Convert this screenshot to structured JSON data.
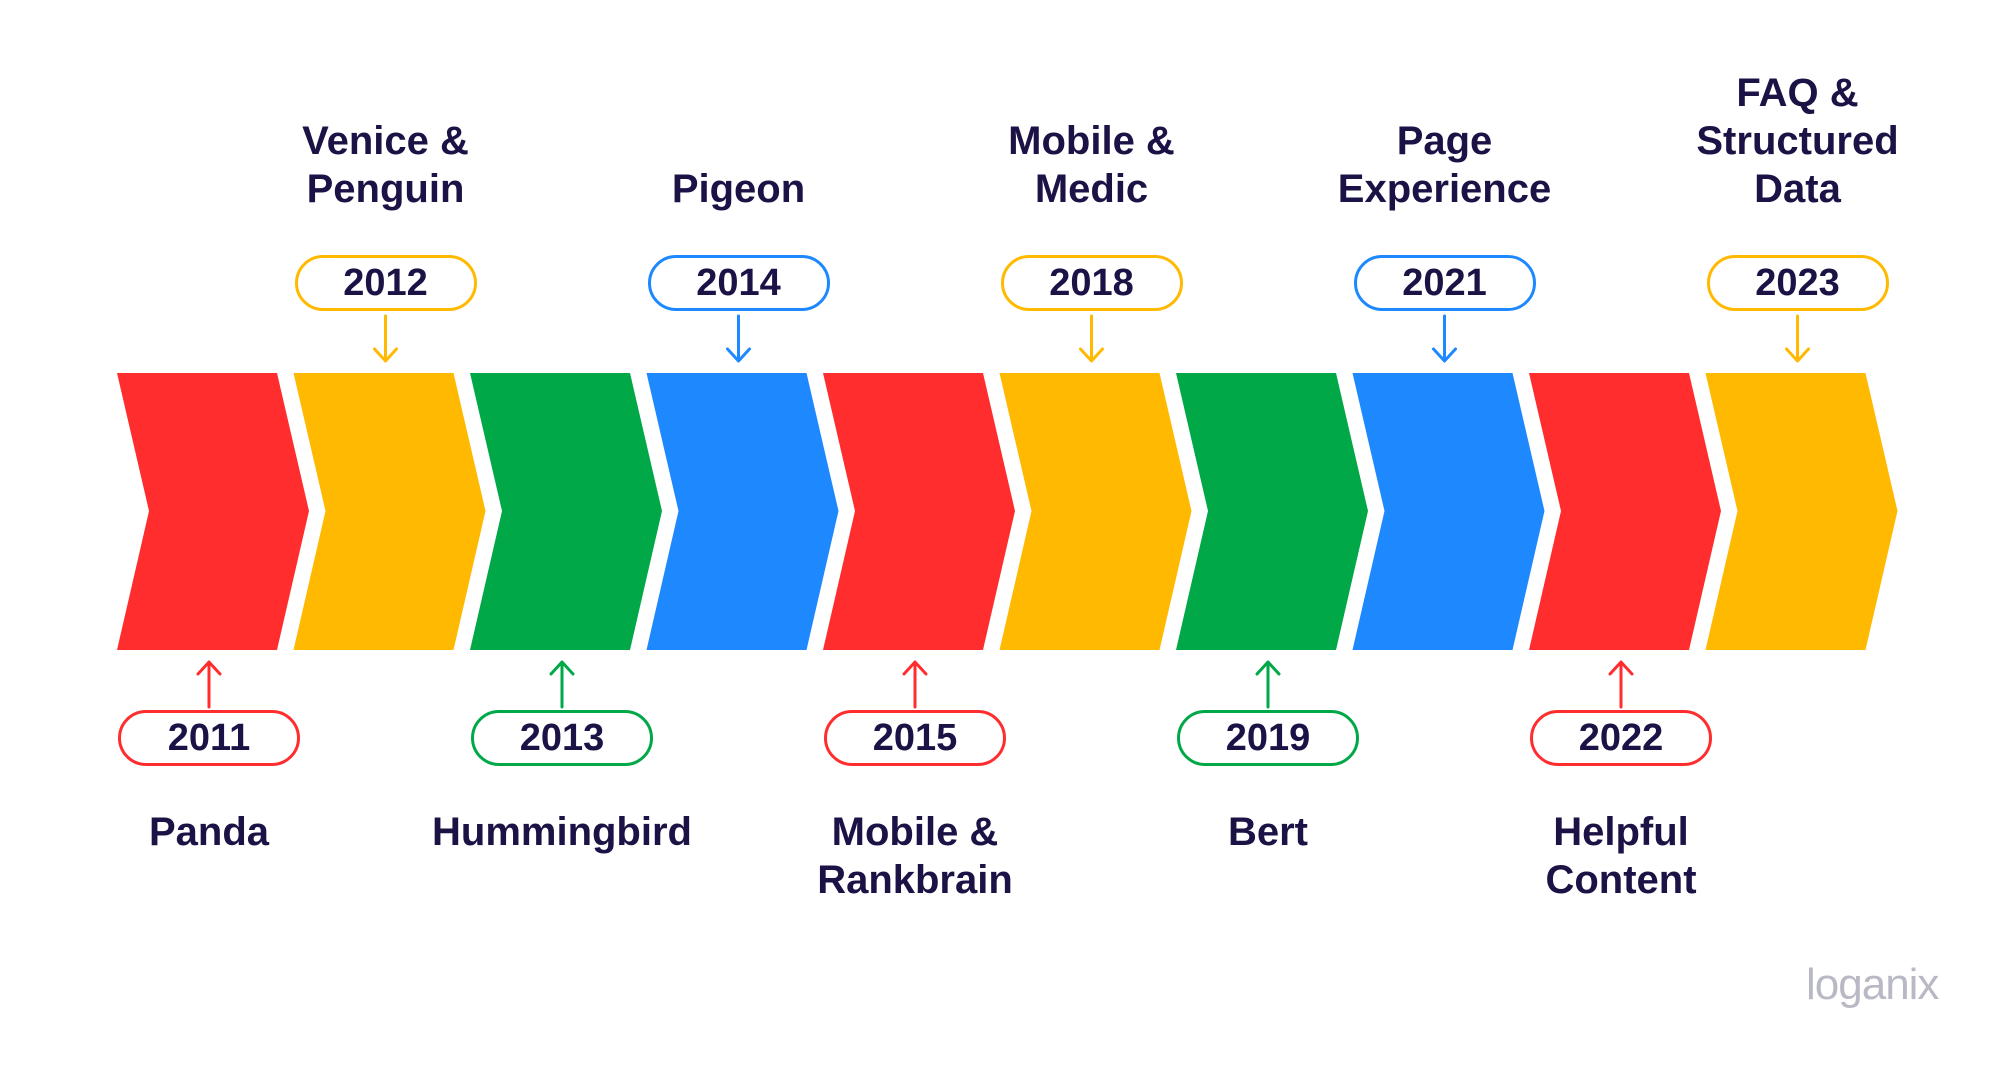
{
  "colors": {
    "red": "#ff2d2d",
    "yellow": "#ffb900",
    "green": "#00a847",
    "blue": "#1e88ff",
    "text": "#1c1245"
  },
  "milestones": [
    {
      "year": "2011",
      "name": "Panda",
      "position": "bottom",
      "color": "red"
    },
    {
      "year": "2012",
      "name": "Venice &\nPenguin",
      "position": "top",
      "color": "yellow"
    },
    {
      "year": "2013",
      "name": "Hummingbird",
      "position": "bottom",
      "color": "green"
    },
    {
      "year": "2014",
      "name": "Pigeon",
      "position": "top",
      "color": "blue"
    },
    {
      "year": "2015",
      "name": "Mobile &\nRankbrain",
      "position": "bottom",
      "color": "red"
    },
    {
      "year": "2018",
      "name": "Mobile &\nMedic",
      "position": "top",
      "color": "yellow"
    },
    {
      "year": "2019",
      "name": "Bert",
      "position": "bottom",
      "color": "green"
    },
    {
      "year": "2021",
      "name": "Page\nExperience",
      "position": "top",
      "color": "blue"
    },
    {
      "year": "2022",
      "name": "Helpful\nContent",
      "position": "bottom",
      "color": "red"
    },
    {
      "year": "2023",
      "name": "FAQ &\nStructured Data",
      "position": "top",
      "color": "yellow"
    }
  ],
  "logo": "loganix"
}
